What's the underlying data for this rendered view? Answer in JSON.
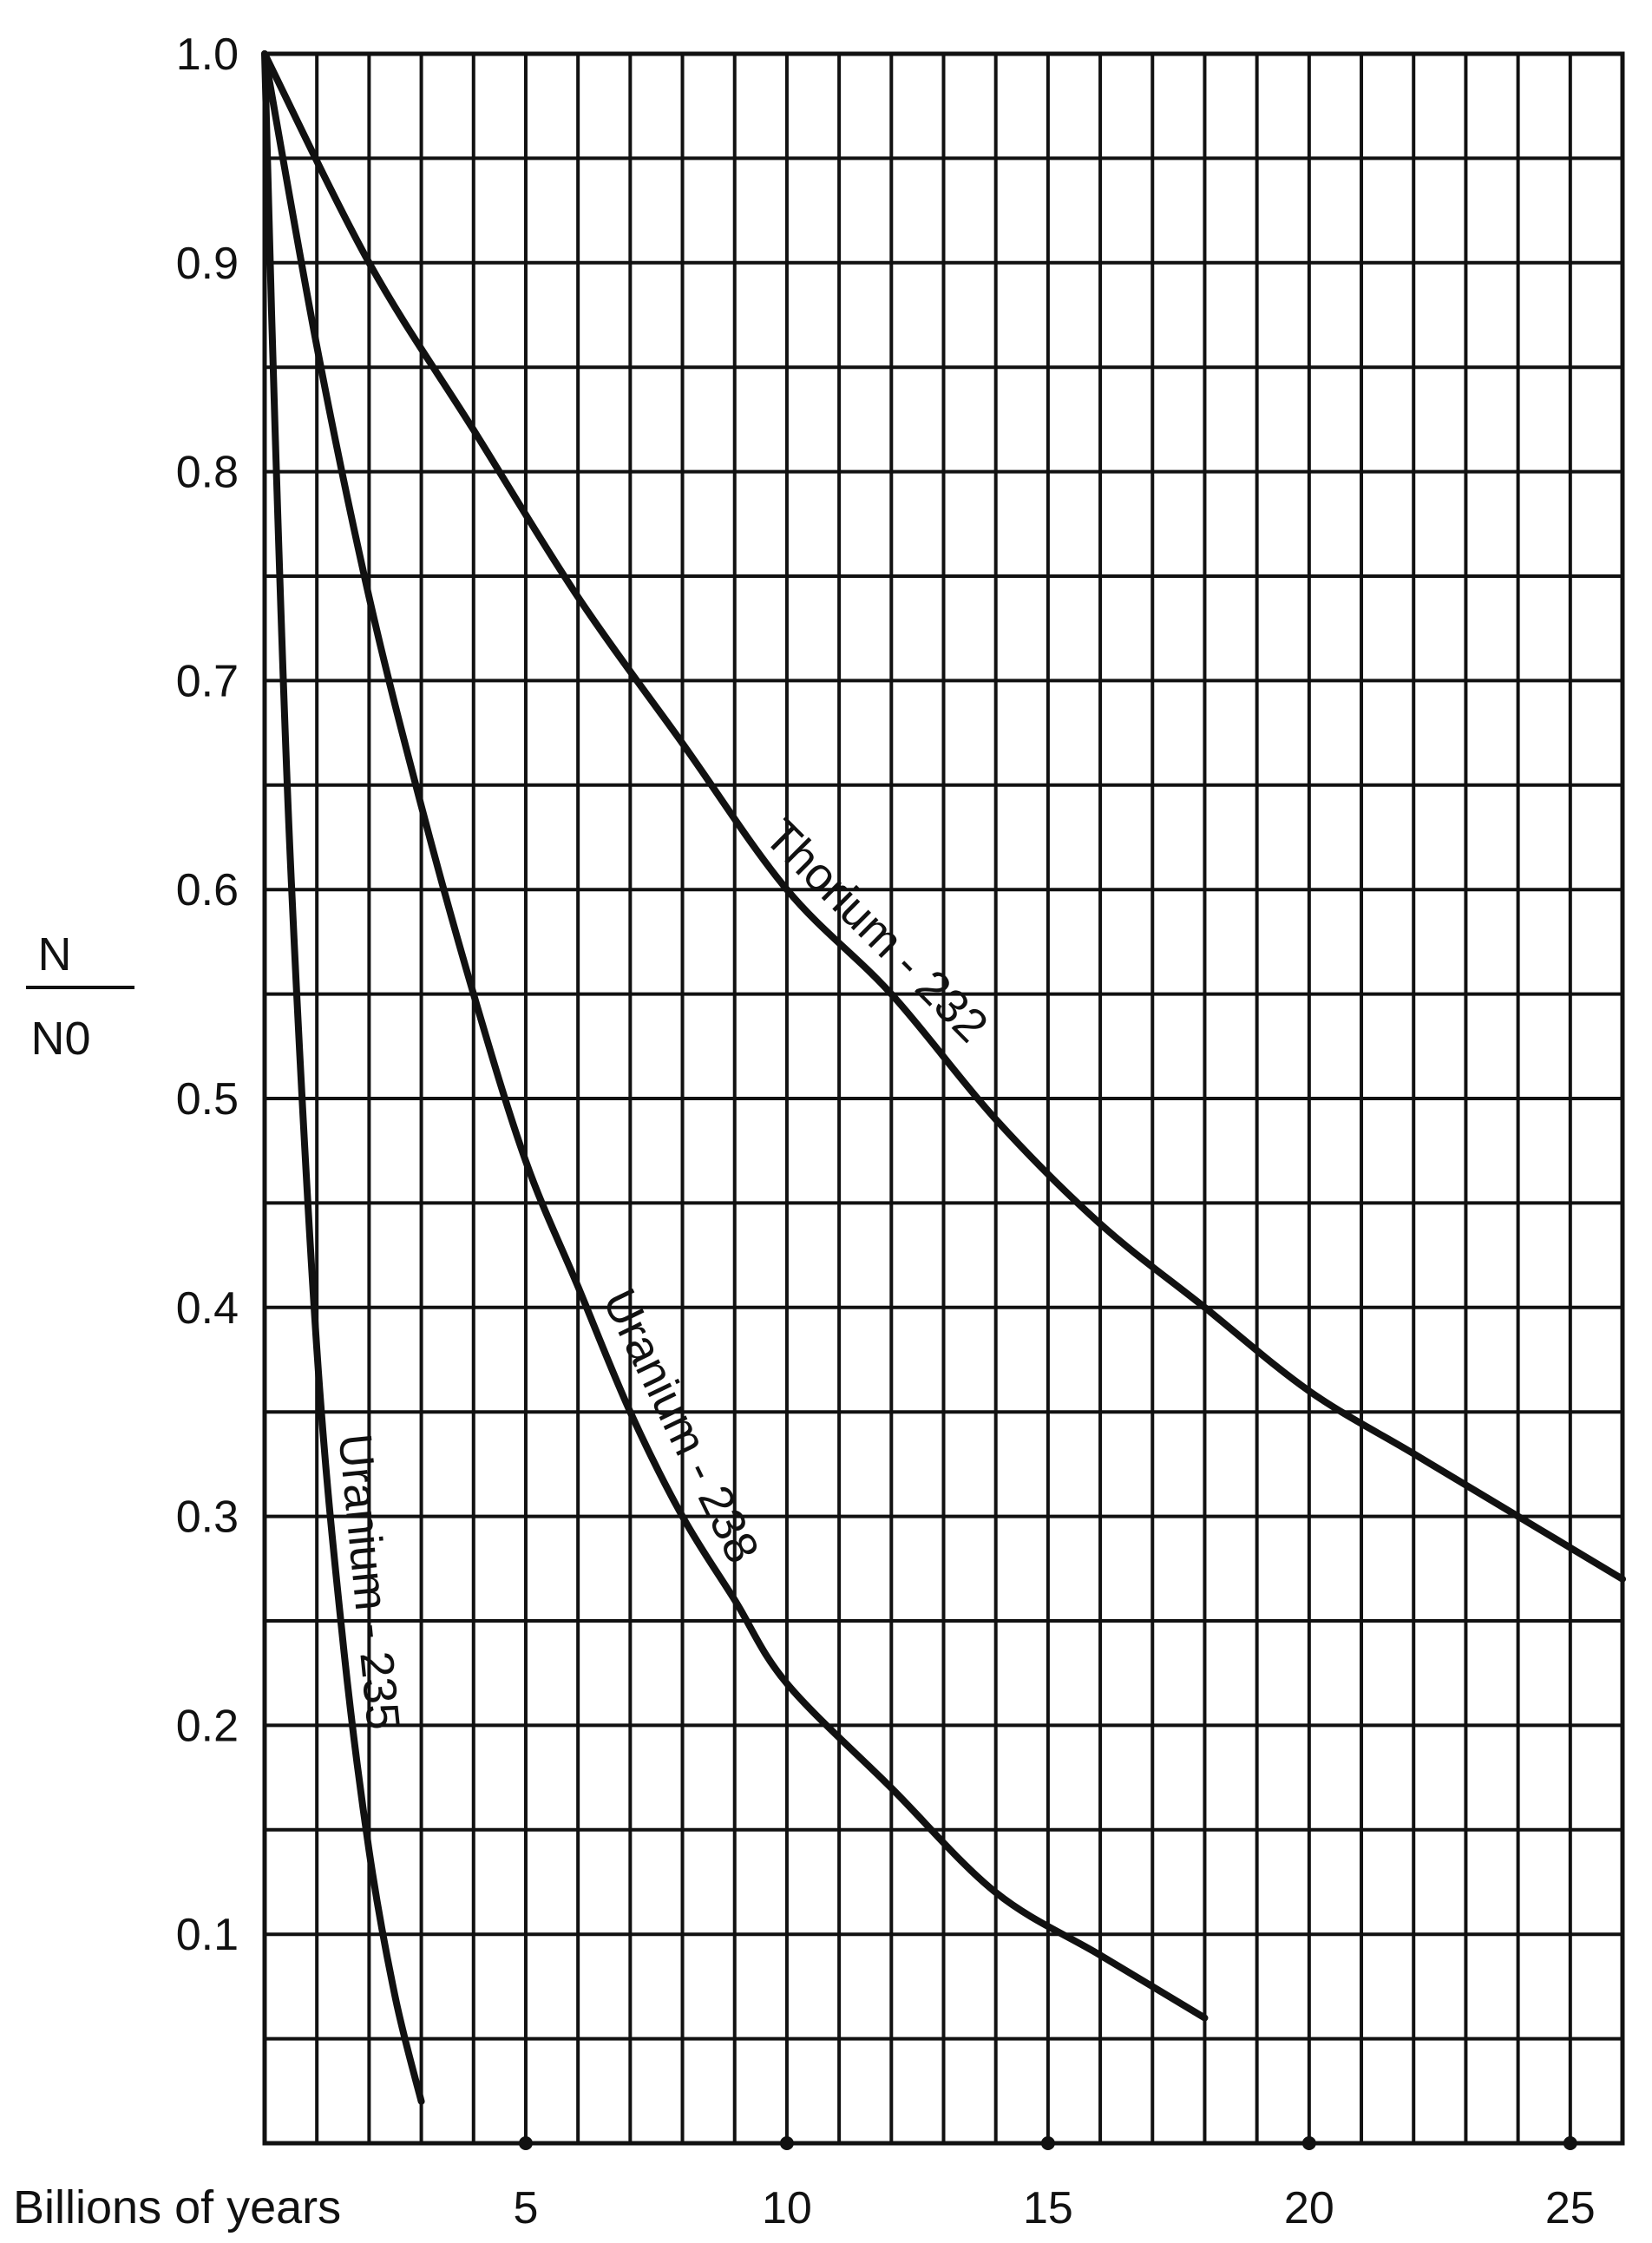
{
  "chart_data": {
    "type": "line",
    "title": "",
    "xlabel": "Billions of years",
    "ylabel": {
      "numerator": "N",
      "denominator": "N0"
    },
    "xlim": [
      0,
      26
    ],
    "ylim": [
      0,
      1.0
    ],
    "grid": true,
    "x_ticks": [
      5,
      10,
      15,
      20,
      25
    ],
    "x_tick_labels": [
      "5",
      "10",
      "15",
      "20",
      "25"
    ],
    "y_ticks": [
      0.1,
      0.2,
      0.3,
      0.4,
      0.5,
      0.6,
      0.7,
      0.8,
      0.9,
      1.0
    ],
    "y_tick_labels": [
      "0.1",
      "0.2",
      "0.3",
      "0.4",
      "0.5",
      "0.6",
      "0.7",
      "0.8",
      "0.9",
      "1.0"
    ],
    "series": [
      {
        "name": "Uranium - 235",
        "x": [
          0,
          0.2,
          0.5,
          1.0,
          1.5,
          2.0,
          2.5,
          3.0
        ],
        "y": [
          1.0,
          0.82,
          0.61,
          0.38,
          0.24,
          0.14,
          0.07,
          0.02
        ]
      },
      {
        "name": "Uranium - 238",
        "x": [
          0,
          1,
          2,
          3,
          4,
          5,
          6,
          7,
          8,
          9,
          10,
          12,
          14,
          16,
          18
        ],
        "y": [
          1.0,
          0.86,
          0.74,
          0.64,
          0.55,
          0.47,
          0.41,
          0.35,
          0.3,
          0.26,
          0.22,
          0.17,
          0.12,
          0.09,
          0.06
        ]
      },
      {
        "name": "Thorium - 232",
        "x": [
          0,
          2,
          4,
          6,
          8,
          10,
          12,
          14,
          16,
          18,
          20,
          22,
          24,
          26
        ],
        "y": [
          1.0,
          0.9,
          0.82,
          0.74,
          0.67,
          0.6,
          0.55,
          0.49,
          0.44,
          0.4,
          0.36,
          0.33,
          0.3,
          0.27
        ]
      }
    ]
  }
}
